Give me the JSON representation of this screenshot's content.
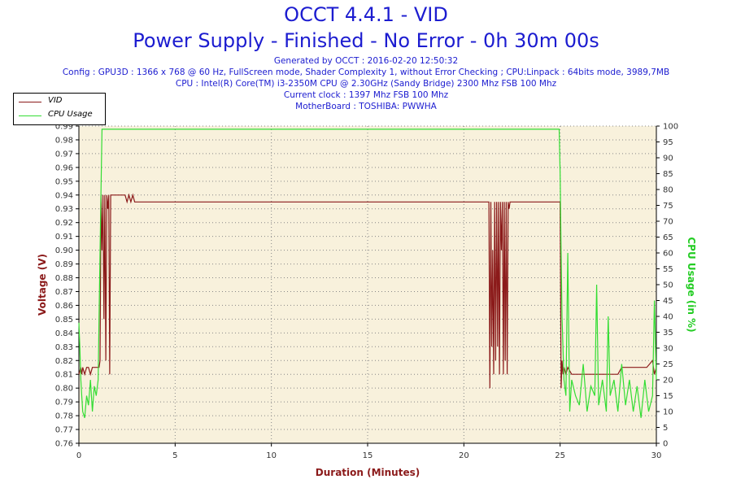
{
  "header": {
    "title": "OCCT 4.4.1 - VID",
    "subtitle": "Power Supply - Finished - No Error - 0h 30m 00s",
    "info_lines": [
      "Generated by OCCT : 2016-02-20 12:50:32",
      "Config : GPU3D : 1366 x 768 @ 60 Hz, FullScreen mode, Shader Complexity 1, without Error Checking ; CPU:Linpack : 64bits mode, 3989,7MB",
      "CPU : Intel(R) Core(TM) i3-2350M CPU @ 2.30GHz (Sandy Bridge) 2300 Mhz FSB 100 Mhz",
      "Current clock : 1397 Mhz FSB 100 Mhz",
      "MotherBoard : TOSHIBA: PWWHA"
    ]
  },
  "legend": {
    "items": [
      {
        "label": "VID",
        "color": "#8b1a1a"
      },
      {
        "label": "CPU Usage",
        "color": "#33dd33"
      }
    ]
  },
  "colors": {
    "plot_background": "#f8f1dc",
    "grid": "#888888",
    "vid": "#8b1a1a",
    "cpu": "#33dd33",
    "axis_label_left": "#8b1a1a",
    "axis_label_right": "#22cc22",
    "axis_label_bottom": "#8b1a1a"
  },
  "chart_data": {
    "type": "line",
    "xlabel": "Duration (Minutes)",
    "ylabel_left": "Voltage (V)",
    "ylabel_right": "CPU Usage (in %)",
    "xlim": [
      0,
      30
    ],
    "ylim_left": [
      0.76,
      0.99
    ],
    "ylim_right": [
      0,
      100
    ],
    "x_ticks": [
      0,
      5,
      10,
      15,
      20,
      25,
      30
    ],
    "y_left_ticks": [
      "0.76",
      "0.77",
      "0.78",
      "0.79",
      "0.80",
      "0.81",
      "0.82",
      "0.83",
      "0.84",
      "0.85",
      "0.86",
      "0.87",
      "0.88",
      "0.89",
      "0.90",
      "0.91",
      "0.92",
      "0.93",
      "0.94",
      "0.95",
      "0.96",
      "0.97",
      "0.98",
      "0.99"
    ],
    "y_right_ticks": [
      0,
      5,
      10,
      15,
      20,
      25,
      30,
      35,
      40,
      45,
      50,
      55,
      60,
      65,
      70,
      75,
      80,
      85,
      90,
      95,
      100
    ],
    "grid": true,
    "legend_position": "top-left",
    "series": [
      {
        "name": "VID",
        "axis": "left",
        "x": [
          0,
          0.1,
          0.15,
          0.2,
          0.3,
          0.4,
          0.5,
          0.6,
          0.7,
          0.8,
          0.9,
          1.0,
          1.05,
          1.1,
          1.15,
          1.2,
          1.25,
          1.3,
          1.35,
          1.4,
          1.45,
          1.5,
          1.55,
          1.6,
          1.65,
          1.7,
          1.75,
          1.8,
          2.0,
          2.2,
          2.4,
          2.5,
          2.6,
          2.7,
          2.8,
          2.9,
          3.0,
          3.5,
          3.6,
          3.7,
          4.0,
          10,
          15,
          20,
          21.2,
          21.3,
          21.35,
          21.4,
          21.45,
          21.5,
          21.55,
          21.6,
          21.65,
          21.7,
          21.75,
          21.8,
          21.85,
          21.9,
          21.95,
          22.0,
          22.05,
          22.1,
          22.15,
          22.2,
          22.25,
          22.3,
          22.35,
          22.4,
          22.5,
          23,
          24,
          24.9,
          25.0,
          25.05,
          25.1,
          25.15,
          25.2,
          25.3,
          25.4,
          25.6,
          26,
          26.5,
          27,
          27.5,
          28,
          28.2,
          28.5,
          29,
          29.5,
          29.8,
          29.9,
          30
        ],
        "y": [
          0.81,
          0.815,
          0.81,
          0.815,
          0.81,
          0.815,
          0.815,
          0.81,
          0.815,
          0.815,
          0.815,
          0.815,
          0.815,
          0.82,
          0.94,
          0.9,
          0.94,
          0.85,
          0.94,
          0.82,
          0.94,
          0.93,
          0.94,
          0.81,
          0.94,
          0.94,
          0.94,
          0.94,
          0.94,
          0.94,
          0.94,
          0.935,
          0.94,
          0.935,
          0.94,
          0.935,
          0.935,
          0.935,
          0.935,
          0.935,
          0.935,
          0.935,
          0.935,
          0.935,
          0.935,
          0.935,
          0.8,
          0.935,
          0.83,
          0.9,
          0.81,
          0.935,
          0.82,
          0.935,
          0.83,
          0.935,
          0.81,
          0.935,
          0.9,
          0.935,
          0.81,
          0.935,
          0.82,
          0.935,
          0.81,
          0.935,
          0.93,
          0.935,
          0.935,
          0.935,
          0.935,
          0.935,
          0.935,
          0.8,
          0.82,
          0.81,
          0.815,
          0.81,
          0.815,
          0.81,
          0.81,
          0.81,
          0.81,
          0.81,
          0.81,
          0.815,
          0.815,
          0.815,
          0.815,
          0.82,
          0.81,
          0.815
        ]
      },
      {
        "name": "CPU Usage",
        "axis": "right",
        "x": [
          0,
          0.05,
          0.1,
          0.15,
          0.2,
          0.3,
          0.4,
          0.5,
          0.6,
          0.7,
          0.8,
          0.9,
          1.0,
          1.05,
          1.1,
          1.15,
          1.2,
          1.3,
          2,
          5,
          10,
          15,
          20,
          24,
          24.9,
          24.95,
          25.0,
          25.05,
          25.1,
          25.15,
          25.2,
          25.3,
          25.4,
          25.5,
          25.6,
          25.8,
          26.0,
          26.2,
          26.4,
          26.6,
          26.8,
          26.9,
          27.0,
          27.2,
          27.4,
          27.5,
          27.6,
          27.8,
          28.0,
          28.2,
          28.4,
          28.6,
          28.8,
          29.0,
          29.2,
          29.4,
          29.6,
          29.8,
          29.9,
          30
        ],
        "y": [
          38,
          30,
          20,
          15,
          10,
          8,
          15,
          12,
          20,
          10,
          18,
          15,
          20,
          40,
          60,
          80,
          99,
          99,
          99,
          99,
          99,
          99,
          99,
          99,
          99,
          99,
          85,
          60,
          40,
          30,
          20,
          15,
          60,
          10,
          20,
          15,
          12,
          25,
          10,
          18,
          15,
          50,
          12,
          20,
          10,
          40,
          15,
          20,
          10,
          25,
          12,
          20,
          10,
          18,
          8,
          20,
          10,
          15,
          45,
          20
        ]
      }
    ]
  }
}
